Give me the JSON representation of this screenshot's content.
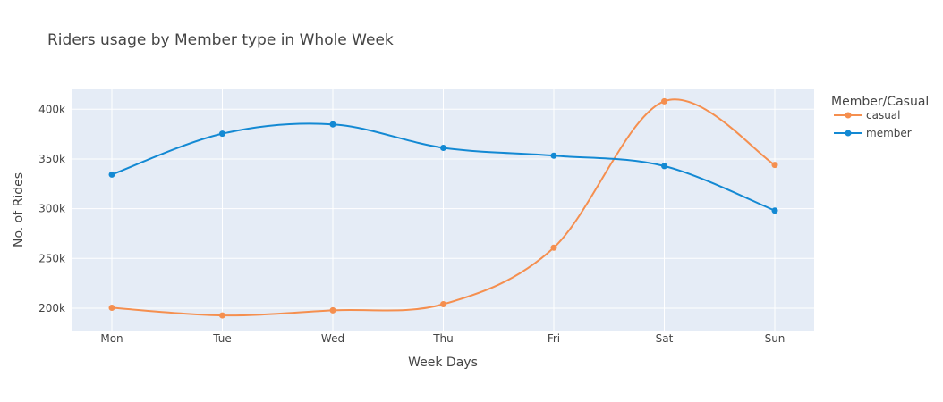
{
  "chart_data": {
    "type": "line",
    "title": "Riders usage by Member type in Whole Week",
    "xlabel": "Week Days",
    "ylabel": "No. of Rides",
    "categories": [
      "Mon",
      "Tue",
      "Wed",
      "Thu",
      "Fri",
      "Sat",
      "Sun"
    ],
    "ylim": [
      177500,
      420000
    ],
    "yticks": [
      200000,
      250000,
      300000,
      350000,
      400000
    ],
    "ytick_labels": [
      "200k",
      "250k",
      "300k",
      "350k",
      "400k"
    ],
    "grid": true,
    "legend": {
      "title": "Member/Casual",
      "position": "top-right"
    },
    "series": [
      {
        "name": "casual",
        "color": "#F58F4F",
        "values": [
          200400,
          192700,
          197800,
          204000,
          260800,
          408000,
          344000
        ]
      },
      {
        "name": "member",
        "color": "#1389D3",
        "values": [
          334300,
          375400,
          384800,
          361200,
          353300,
          342900,
          298100
        ]
      }
    ]
  }
}
